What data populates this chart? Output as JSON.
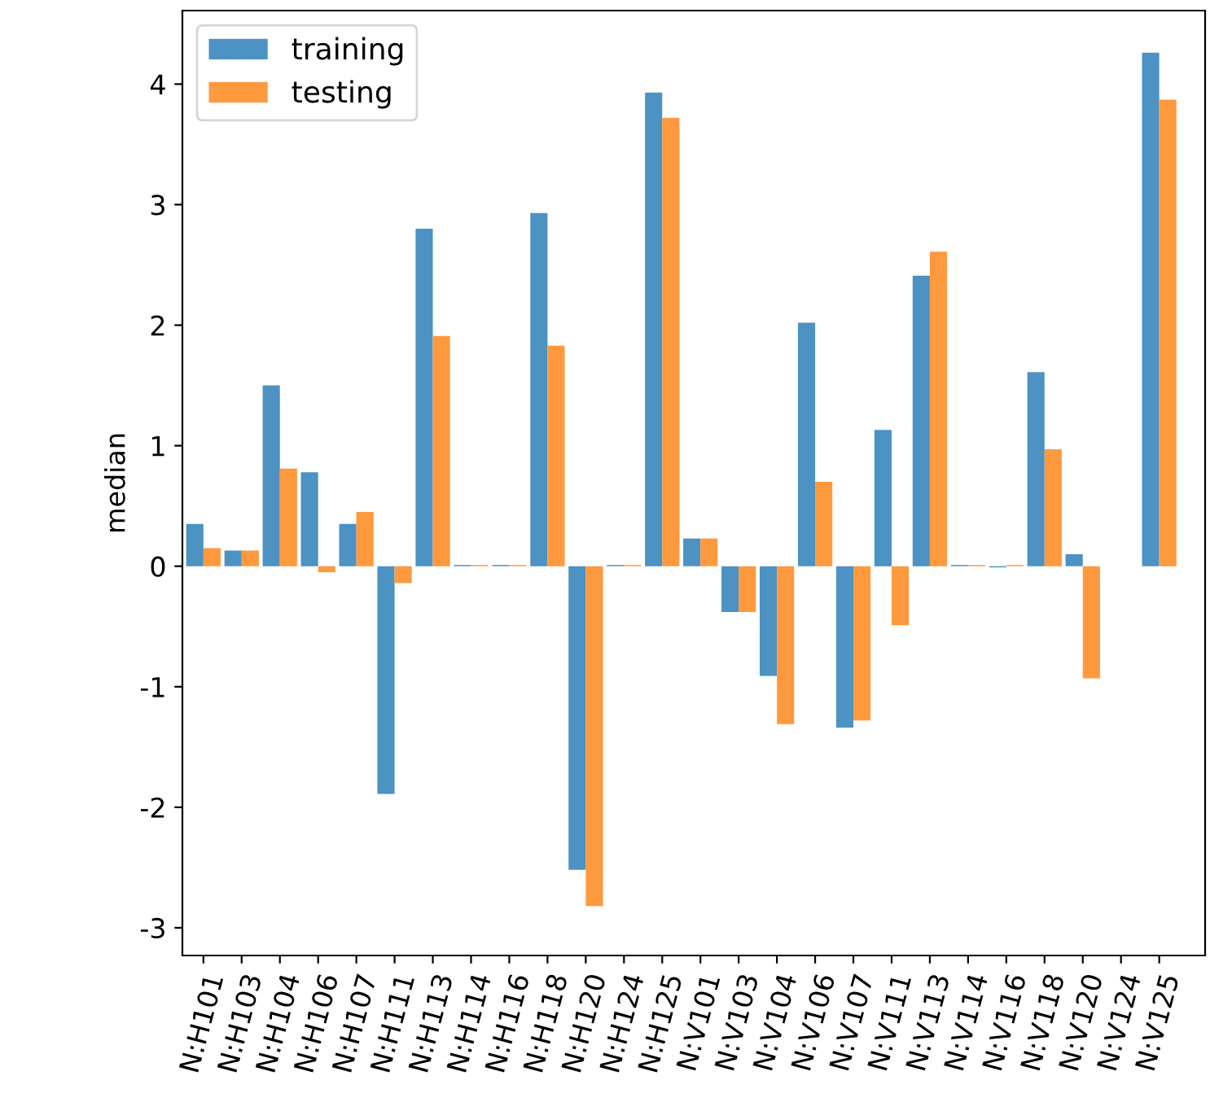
{
  "chart_data": {
    "type": "bar",
    "ylabel": "median",
    "categories": [
      "N:H101",
      "N:H103",
      "N:H104",
      "N:H106",
      "N:H107",
      "N:H111",
      "N:H113",
      "N:H114",
      "N:H116",
      "N:H118",
      "N:H120",
      "N:H124",
      "N:H125",
      "N:V101",
      "N:V103",
      "N:V104",
      "N:V106",
      "N:V107",
      "N:V111",
      "N:V113",
      "N:V114",
      "N:V116",
      "N:V118",
      "N:V120",
      "N:V124",
      "N:V125"
    ],
    "series": [
      {
        "name": "training",
        "color": "#4c92c3",
        "values": [
          0.35,
          0.13,
          1.5,
          0.78,
          0.35,
          -1.89,
          2.8,
          0.01,
          0.01,
          2.93,
          -2.52,
          0.01,
          3.93,
          0.23,
          -0.38,
          -0.91,
          2.02,
          -1.34,
          1.13,
          2.41,
          0.01,
          -0.01,
          1.61,
          0.1,
          0,
          4.26
        ]
      },
      {
        "name": "testing",
        "color": "#ff993e",
        "values": [
          0.15,
          0.13,
          0.81,
          -0.05,
          0.45,
          -0.14,
          1.91,
          0.01,
          0.01,
          1.83,
          -2.82,
          0.01,
          3.72,
          0.23,
          -0.38,
          -1.31,
          0.7,
          -1.28,
          -0.49,
          2.61,
          0.01,
          0.01,
          0.97,
          -0.93,
          0,
          3.87
        ]
      }
    ],
    "ylim": [
      -3.23,
      4.61
    ],
    "yticks": [
      -3,
      -2,
      -1,
      0,
      1,
      2,
      3,
      4
    ],
    "legend": "top left",
    "grid": false
  }
}
